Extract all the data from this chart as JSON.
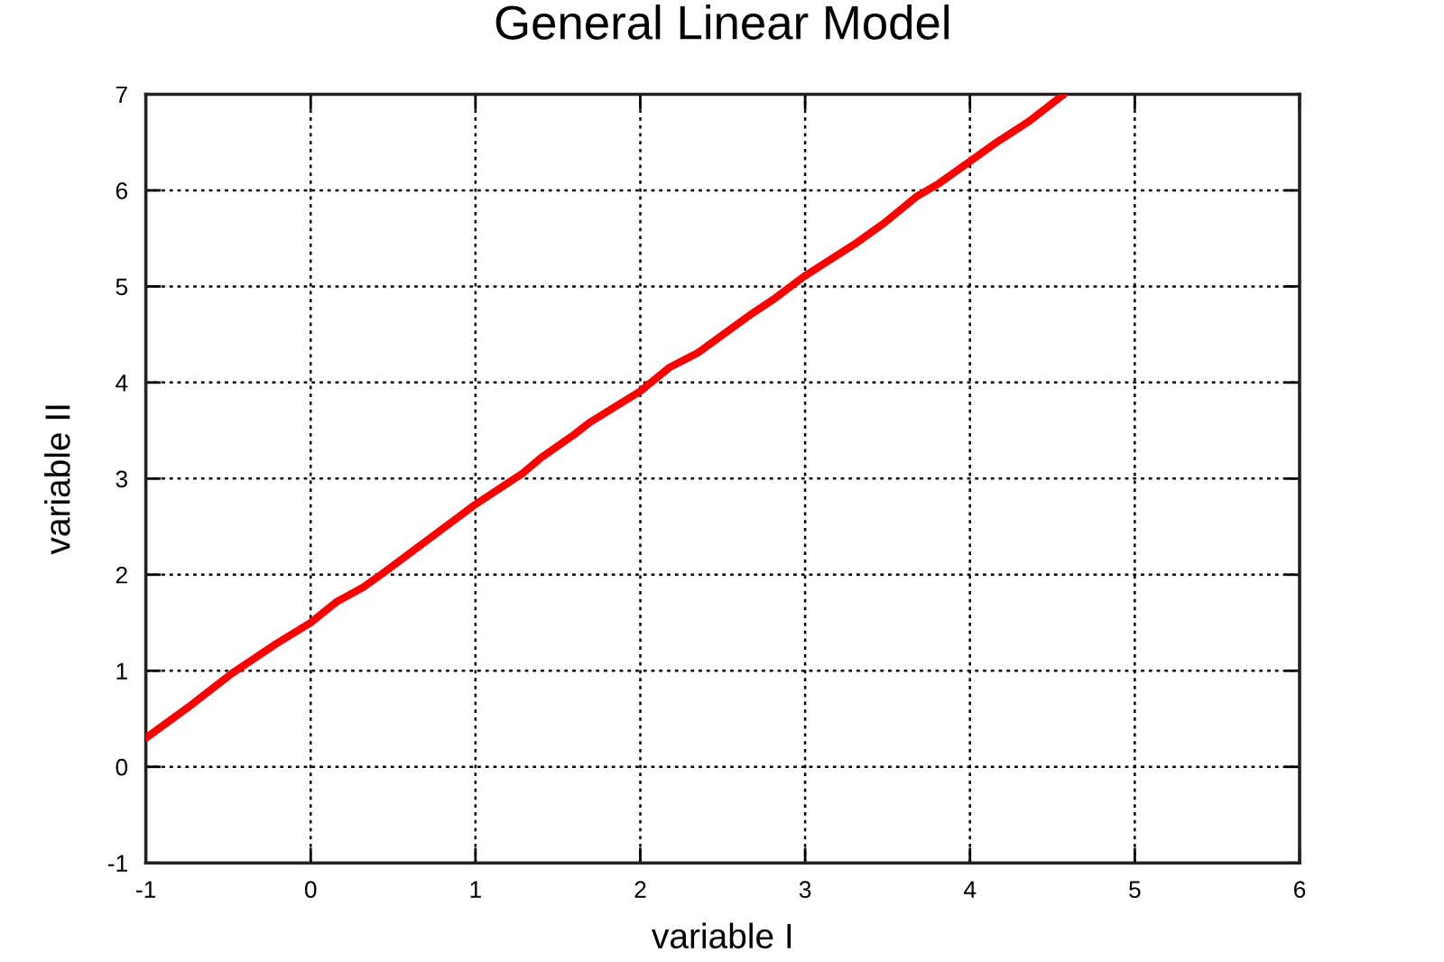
{
  "chart_data": {
    "type": "line",
    "title": "General Linear Model",
    "xlabel": "variable I",
    "ylabel": "variable II",
    "x": [
      -1.0,
      -0.72,
      -0.48,
      -0.21,
      0.0,
      0.16,
      0.32,
      0.45,
      0.99,
      1.29,
      1.4,
      1.6,
      1.69,
      2.0,
      2.18,
      2.35,
      2.68,
      2.82,
      2.99,
      3.3,
      3.48,
      3.68,
      3.81,
      3.99,
      4.17,
      4.36,
      4.57
    ],
    "series": [
      {
        "color": "#ff0000",
        "values": [
          0.3,
          0.65,
          0.97,
          1.28,
          1.5,
          1.72,
          1.87,
          2.03,
          2.72,
          3.06,
          3.22,
          3.46,
          3.58,
          3.91,
          4.16,
          4.31,
          4.72,
          4.88,
          5.1,
          5.44,
          5.66,
          5.94,
          6.07,
          6.29,
          6.51,
          6.72,
          7.0
        ]
      }
    ],
    "xlim": [
      -1,
      6
    ],
    "ylim": [
      -1,
      7
    ],
    "xticks": [
      -1,
      0,
      1,
      2,
      3,
      4,
      5,
      6
    ],
    "yticks": [
      -1,
      0,
      1,
      2,
      3,
      4,
      5,
      6,
      7
    ],
    "grid": true,
    "line_style": "solid",
    "marker": "none"
  }
}
